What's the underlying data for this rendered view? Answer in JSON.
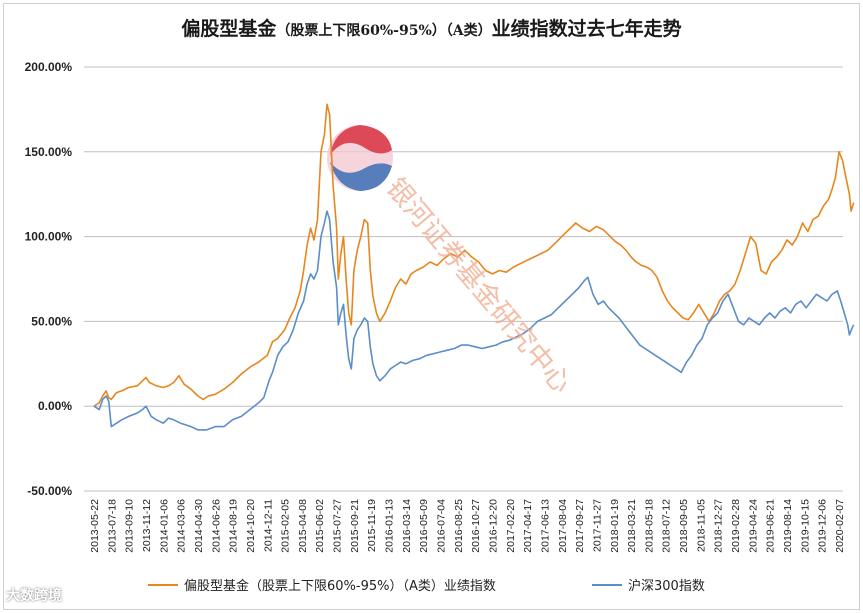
{
  "chart_data": {
    "type": "line",
    "title": "偏股型基金",
    "title_sub": "（股票上下限60%-95%）（A类）",
    "title_tail": "业绩指数过去七年走势",
    "ylim": [
      -50,
      200
    ],
    "yticks": [
      -50,
      0,
      50,
      100,
      150,
      200
    ],
    "ytick_labels": [
      "-50.00%",
      "0.00%",
      "50.00%",
      "100.00%",
      "150.00%",
      "200.00%"
    ],
    "x_labels": [
      "2013-05-22",
      "2013-07-18",
      "2013-09-10",
      "2013-11-12",
      "2014-01-06",
      "2014-03-06",
      "2014-04-30",
      "2014-06-26",
      "2014-08-19",
      "2014-10-20",
      "2014-12-11",
      "2015-02-05",
      "2015-04-08",
      "2015-06-02",
      "2015-07-27",
      "2015-09-21",
      "2015-11-19",
      "2016-01-13",
      "2016-03-14",
      "2016-05-09",
      "2016-07-04",
      "2016-08-25",
      "2016-10-27",
      "2016-12-20",
      "2017-02-20",
      "2017-04-17",
      "2017-06-13",
      "2017-08-04",
      "2017-09-27",
      "2017-11-27",
      "2018-01-19",
      "2018-03-21",
      "2018-05-18",
      "2018-07-12",
      "2018-09-05",
      "2018-11-05",
      "2018-12-27",
      "2019-02-28",
      "2019-04-24",
      "2019-06-21",
      "2019-08-14",
      "2019-10-15",
      "2019-12-06",
      "2020-02-07"
    ],
    "series": [
      {
        "name": "偏股型基金（股票上下限60%-95%）（A类）业绩指数",
        "color": "#E8861E",
        "points": [
          [
            0,
            0
          ],
          [
            0.15,
            1
          ],
          [
            0.3,
            2
          ],
          [
            0.5,
            6
          ],
          [
            0.7,
            9
          ],
          [
            0.85,
            5
          ],
          [
            1,
            4
          ],
          [
            1.3,
            8
          ],
          [
            1.6,
            9
          ],
          [
            2,
            11
          ],
          [
            2.5,
            12
          ],
          [
            2.8,
            15
          ],
          [
            3,
            17
          ],
          [
            3.2,
            14
          ],
          [
            3.6,
            12
          ],
          [
            4,
            11
          ],
          [
            4.3,
            12
          ],
          [
            4.6,
            14
          ],
          [
            4.9,
            18
          ],
          [
            5.2,
            13
          ],
          [
            5.6,
            10
          ],
          [
            6,
            6
          ],
          [
            6.3,
            4
          ],
          [
            6.6,
            6
          ],
          [
            7,
            7
          ],
          [
            7.5,
            10
          ],
          [
            8,
            14
          ],
          [
            8.5,
            19
          ],
          [
            9,
            23
          ],
          [
            9.5,
            26
          ],
          [
            10,
            30
          ],
          [
            10.3,
            38
          ],
          [
            10.6,
            40
          ],
          [
            11,
            45
          ],
          [
            11.3,
            52
          ],
          [
            11.6,
            58
          ],
          [
            11.9,
            68
          ],
          [
            12.1,
            80
          ],
          [
            12.3,
            95
          ],
          [
            12.5,
            105
          ],
          [
            12.7,
            98
          ],
          [
            12.9,
            110
          ],
          [
            13.1,
            150
          ],
          [
            13.3,
            160
          ],
          [
            13.45,
            178
          ],
          [
            13.6,
            172
          ],
          [
            13.8,
            130
          ],
          [
            14,
            105
          ],
          [
            14.1,
            75
          ],
          [
            14.25,
            90
          ],
          [
            14.4,
            100
          ],
          [
            14.55,
            75
          ],
          [
            14.7,
            55
          ],
          [
            14.85,
            48
          ],
          [
            15,
            80
          ],
          [
            15.2,
            92
          ],
          [
            15.4,
            100
          ],
          [
            15.6,
            110
          ],
          [
            15.8,
            108
          ],
          [
            15.95,
            80
          ],
          [
            16.1,
            65
          ],
          [
            16.3,
            55
          ],
          [
            16.5,
            50
          ],
          [
            16.8,
            55
          ],
          [
            17.1,
            62
          ],
          [
            17.4,
            70
          ],
          [
            17.7,
            75
          ],
          [
            18,
            72
          ],
          [
            18.3,
            78
          ],
          [
            18.6,
            80
          ],
          [
            19,
            82
          ],
          [
            19.4,
            85
          ],
          [
            19.8,
            83
          ],
          [
            20.2,
            87
          ],
          [
            20.6,
            90
          ],
          [
            21,
            88
          ],
          [
            21.4,
            92
          ],
          [
            21.8,
            88
          ],
          [
            22.2,
            85
          ],
          [
            22.6,
            80
          ],
          [
            23,
            78
          ],
          [
            23.4,
            80
          ],
          [
            23.8,
            79
          ],
          [
            24.2,
            82
          ],
          [
            24.6,
            84
          ],
          [
            25,
            86
          ],
          [
            25.4,
            88
          ],
          [
            25.8,
            90
          ],
          [
            26.2,
            92
          ],
          [
            26.6,
            96
          ],
          [
            27,
            100
          ],
          [
            27.4,
            104
          ],
          [
            27.8,
            108
          ],
          [
            28.2,
            105
          ],
          [
            28.6,
            103
          ],
          [
            29,
            106
          ],
          [
            29.4,
            104
          ],
          [
            29.8,
            100
          ],
          [
            30.1,
            97
          ],
          [
            30.4,
            95
          ],
          [
            30.7,
            92
          ],
          [
            31,
            88
          ],
          [
            31.3,
            85
          ],
          [
            31.6,
            83
          ],
          [
            31.9,
            82
          ],
          [
            32.2,
            80
          ],
          [
            32.5,
            76
          ],
          [
            32.8,
            68
          ],
          [
            33.1,
            62
          ],
          [
            33.4,
            58
          ],
          [
            33.7,
            55
          ],
          [
            34,
            52
          ],
          [
            34.3,
            51
          ],
          [
            34.6,
            55
          ],
          [
            34.9,
            60
          ],
          [
            35.2,
            55
          ],
          [
            35.5,
            50
          ],
          [
            35.8,
            55
          ],
          [
            36.1,
            62
          ],
          [
            36.4,
            66
          ],
          [
            36.7,
            68
          ],
          [
            37,
            72
          ],
          [
            37.3,
            80
          ],
          [
            37.6,
            90
          ],
          [
            37.9,
            100
          ],
          [
            38.2,
            96
          ],
          [
            38.5,
            80
          ],
          [
            38.8,
            78
          ],
          [
            39.1,
            85
          ],
          [
            39.4,
            88
          ],
          [
            39.7,
            92
          ],
          [
            40,
            98
          ],
          [
            40.3,
            95
          ],
          [
            40.6,
            100
          ],
          [
            40.9,
            108
          ],
          [
            41.2,
            103
          ],
          [
            41.5,
            110
          ],
          [
            41.8,
            112
          ],
          [
            42.1,
            118
          ],
          [
            42.4,
            122
          ],
          [
            42.6,
            128
          ],
          [
            42.8,
            135
          ],
          [
            43,
            150
          ],
          [
            43.2,
            145
          ],
          [
            43.4,
            135
          ],
          [
            43.6,
            125
          ],
          [
            43.7,
            115
          ],
          [
            43.85,
            120
          ]
        ]
      },
      {
        "name": "沪深300指数",
        "color": "#5B8DC8",
        "points": [
          [
            0,
            0
          ],
          [
            0.3,
            -2
          ],
          [
            0.5,
            4
          ],
          [
            0.7,
            6
          ],
          [
            0.85,
            3
          ],
          [
            1,
            -12
          ],
          [
            1.3,
            -10
          ],
          [
            1.6,
            -8
          ],
          [
            2,
            -6
          ],
          [
            2.5,
            -4
          ],
          [
            2.8,
            -2
          ],
          [
            3,
            0
          ],
          [
            3.3,
            -6
          ],
          [
            3.6,
            -8
          ],
          [
            4,
            -10
          ],
          [
            4.3,
            -7
          ],
          [
            4.6,
            -8
          ],
          [
            5,
            -10
          ],
          [
            5.3,
            -11
          ],
          [
            5.6,
            -12
          ],
          [
            6,
            -14
          ],
          [
            6.5,
            -14
          ],
          [
            7,
            -12
          ],
          [
            7.5,
            -12
          ],
          [
            8,
            -8
          ],
          [
            8.5,
            -6
          ],
          [
            9,
            -2
          ],
          [
            9.5,
            2
          ],
          [
            9.8,
            5
          ],
          [
            10.1,
            15
          ],
          [
            10.3,
            20
          ],
          [
            10.6,
            30
          ],
          [
            10.9,
            35
          ],
          [
            11.2,
            38
          ],
          [
            11.5,
            45
          ],
          [
            11.8,
            55
          ],
          [
            12.1,
            62
          ],
          [
            12.3,
            72
          ],
          [
            12.5,
            78
          ],
          [
            12.7,
            75
          ],
          [
            12.9,
            80
          ],
          [
            13.1,
            100
          ],
          [
            13.3,
            108
          ],
          [
            13.45,
            115
          ],
          [
            13.6,
            110
          ],
          [
            13.8,
            85
          ],
          [
            14,
            70
          ],
          [
            14.1,
            48
          ],
          [
            14.25,
            55
          ],
          [
            14.4,
            60
          ],
          [
            14.55,
            42
          ],
          [
            14.7,
            28
          ],
          [
            14.85,
            22
          ],
          [
            15,
            40
          ],
          [
            15.2,
            45
          ],
          [
            15.4,
            48
          ],
          [
            15.6,
            52
          ],
          [
            15.8,
            50
          ],
          [
            15.95,
            35
          ],
          [
            16.1,
            25
          ],
          [
            16.3,
            18
          ],
          [
            16.5,
            15
          ],
          [
            16.8,
            18
          ],
          [
            17.1,
            22
          ],
          [
            17.4,
            24
          ],
          [
            17.7,
            26
          ],
          [
            18,
            25
          ],
          [
            18.4,
            27
          ],
          [
            18.8,
            28
          ],
          [
            19.2,
            30
          ],
          [
            19.6,
            31
          ],
          [
            20,
            32
          ],
          [
            20.4,
            33
          ],
          [
            20.8,
            34
          ],
          [
            21.2,
            36
          ],
          [
            21.6,
            36
          ],
          [
            22,
            35
          ],
          [
            22.4,
            34
          ],
          [
            22.8,
            35
          ],
          [
            23.2,
            36
          ],
          [
            23.6,
            38
          ],
          [
            24,
            39
          ],
          [
            24.4,
            41
          ],
          [
            24.8,
            43
          ],
          [
            25.2,
            46
          ],
          [
            25.6,
            50
          ],
          [
            26,
            52
          ],
          [
            26.4,
            54
          ],
          [
            26.8,
            58
          ],
          [
            27.2,
            62
          ],
          [
            27.6,
            66
          ],
          [
            28,
            70
          ],
          [
            28.3,
            74
          ],
          [
            28.5,
            76
          ],
          [
            28.8,
            66
          ],
          [
            29.1,
            60
          ],
          [
            29.4,
            62
          ],
          [
            29.7,
            58
          ],
          [
            30,
            55
          ],
          [
            30.3,
            52
          ],
          [
            30.6,
            48
          ],
          [
            30.9,
            44
          ],
          [
            31.2,
            40
          ],
          [
            31.5,
            36
          ],
          [
            31.8,
            34
          ],
          [
            32.1,
            32
          ],
          [
            32.4,
            30
          ],
          [
            32.7,
            28
          ],
          [
            33,
            26
          ],
          [
            33.3,
            24
          ],
          [
            33.6,
            22
          ],
          [
            33.9,
            20
          ],
          [
            34.2,
            26
          ],
          [
            34.5,
            30
          ],
          [
            34.8,
            36
          ],
          [
            35.1,
            40
          ],
          [
            35.4,
            48
          ],
          [
            35.7,
            52
          ],
          [
            36,
            55
          ],
          [
            36.3,
            62
          ],
          [
            36.6,
            66
          ],
          [
            36.9,
            58
          ],
          [
            37.2,
            50
          ],
          [
            37.5,
            48
          ],
          [
            37.8,
            52
          ],
          [
            38.1,
            50
          ],
          [
            38.4,
            48
          ],
          [
            38.7,
            52
          ],
          [
            39,
            55
          ],
          [
            39.3,
            52
          ],
          [
            39.6,
            56
          ],
          [
            39.9,
            58
          ],
          [
            40.2,
            55
          ],
          [
            40.5,
            60
          ],
          [
            40.8,
            62
          ],
          [
            41.1,
            58
          ],
          [
            41.4,
            62
          ],
          [
            41.7,
            66
          ],
          [
            42,
            64
          ],
          [
            42.3,
            62
          ],
          [
            42.6,
            66
          ],
          [
            42.9,
            68
          ],
          [
            43.1,
            62
          ],
          [
            43.3,
            55
          ],
          [
            43.5,
            48
          ],
          [
            43.6,
            42
          ],
          [
            43.75,
            46
          ],
          [
            43.85,
            48
          ]
        ]
      }
    ],
    "legend_position": "bottom",
    "grid": "horizontal"
  },
  "watermark": {
    "text": "银河证券基金研究中心"
  },
  "brand": {
    "text": "大数跨境"
  }
}
